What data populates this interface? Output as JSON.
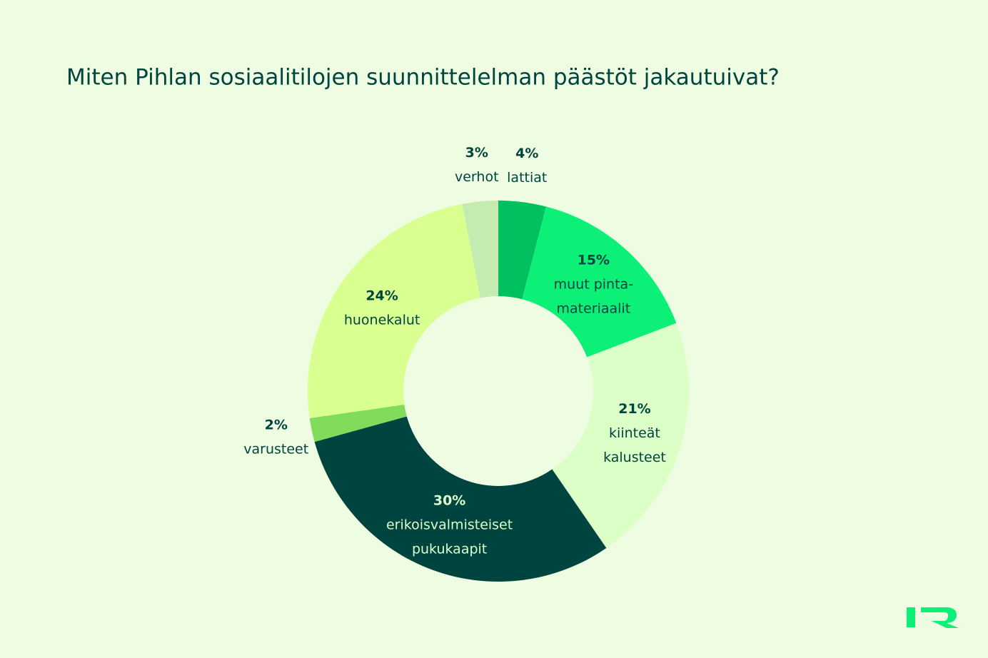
{
  "chart_data": {
    "type": "donut",
    "title": "Miten Pihlan sosiaalitilojen suunnittelelman päästöt jakautuivat?",
    "categories": [
      [
        "lattiat"
      ],
      [
        "muut pinta-",
        "materiaalit"
      ],
      [
        "kiinteät",
        "kalusteet"
      ],
      [
        "erikoisvalmisteiset",
        "pukukaapit"
      ],
      [
        "varusteet"
      ],
      [
        "huonekalut"
      ],
      [
        "verhot"
      ]
    ],
    "values": [
      4,
      15,
      21,
      30,
      2,
      24,
      3
    ],
    "value_labels": [
      "4%",
      "15%",
      "21%",
      "30%",
      "2%",
      "24%",
      "3%"
    ],
    "colors": [
      "#00c060",
      "#0cf078",
      "#dcffc8",
      "#004440",
      "#80dc5a",
      "#d8ff90",
      "#c4ecb0"
    ]
  }
}
